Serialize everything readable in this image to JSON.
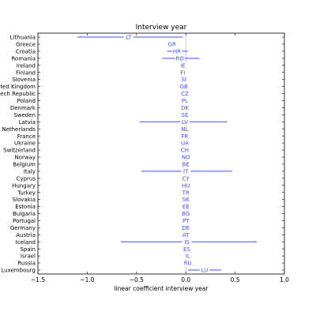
{
  "chart_data": {
    "type": "scatter",
    "title": "Interview year",
    "xlabel": "linear coefficient interview year",
    "ylabel": "",
    "xlim": [
      -1.5,
      1.0
    ],
    "xticks": [
      -1.5,
      -1.0,
      -0.5,
      0.0,
      0.5,
      1.0
    ],
    "xtick_labels": [
      "−1.5",
      "−1.0",
      "−0.5",
      "0.0",
      "0.5",
      "1.0"
    ],
    "grid": false,
    "reference_line_x": 0.0,
    "colors": {
      "interval": "#3f4fff",
      "reference": "#b8b8c8",
      "text": "#000000"
    },
    "points": [
      {
        "country": "Lithuania",
        "code": "LT",
        "estimate": -0.58,
        "low": -1.1,
        "high": -0.03
      },
      {
        "country": "Greece",
        "code": "GR",
        "estimate": -0.14,
        "low": -0.14,
        "high": -0.14
      },
      {
        "country": "Croatia",
        "code": "HR",
        "estimate": -0.09,
        "low": -0.19,
        "high": 0.02
      },
      {
        "country": "Romania",
        "code": "RO",
        "estimate": -0.06,
        "low": -0.24,
        "high": 0.14
      },
      {
        "country": "Ireland",
        "code": "IE",
        "estimate": -0.03,
        "low": -0.03,
        "high": -0.03
      },
      {
        "country": "Finland",
        "code": "FI",
        "estimate": -0.03,
        "low": -0.03,
        "high": -0.03
      },
      {
        "country": "Slovenia",
        "code": "SI",
        "estimate": -0.02,
        "low": -0.02,
        "high": -0.02
      },
      {
        "country": "United Kingdom",
        "code": "GB",
        "estimate": -0.02,
        "low": -0.02,
        "high": -0.02
      },
      {
        "country": "Czech Republic",
        "code": "CZ",
        "estimate": -0.01,
        "low": -0.01,
        "high": -0.01
      },
      {
        "country": "Poland",
        "code": "PL",
        "estimate": -0.01,
        "low": -0.01,
        "high": -0.01
      },
      {
        "country": "Denmark",
        "code": "DK",
        "estimate": -0.01,
        "low": -0.01,
        "high": -0.01
      },
      {
        "country": "Sweden",
        "code": "SE",
        "estimate": -0.01,
        "low": -0.01,
        "high": -0.01
      },
      {
        "country": "Latvia",
        "code": "LV",
        "estimate": -0.01,
        "low": -0.47,
        "high": 0.42
      },
      {
        "country": "Netherlands",
        "code": "NL",
        "estimate": -0.01,
        "low": -0.01,
        "high": -0.01
      },
      {
        "country": "France",
        "code": "FR",
        "estimate": -0.01,
        "low": -0.06,
        "high": 0.03
      },
      {
        "country": "Ukraine",
        "code": "UA",
        "estimate": -0.01,
        "low": -0.01,
        "high": -0.01
      },
      {
        "country": "Switzerland",
        "code": "CH",
        "estimate": -0.01,
        "low": -0.01,
        "high": -0.01
      },
      {
        "country": "Norway",
        "code": "NO",
        "estimate": 0.0,
        "low": 0.0,
        "high": 0.0
      },
      {
        "country": "Belgium",
        "code": "BE",
        "estimate": 0.0,
        "low": 0.0,
        "high": 0.0
      },
      {
        "country": "Italy",
        "code": "IT",
        "estimate": 0.0,
        "low": -0.45,
        "high": 0.47
      },
      {
        "country": "Cyprus",
        "code": "CY",
        "estimate": 0.0,
        "low": 0.0,
        "high": 0.0
      },
      {
        "country": "Hungary",
        "code": "HU",
        "estimate": 0.0,
        "low": 0.0,
        "high": 0.0
      },
      {
        "country": "Turkey",
        "code": "TR",
        "estimate": 0.0,
        "low": -0.02,
        "high": 0.03
      },
      {
        "country": "Slovakia",
        "code": "SK",
        "estimate": 0.0,
        "low": 0.0,
        "high": 0.0
      },
      {
        "country": "Estonia",
        "code": "EE",
        "estimate": 0.0,
        "low": 0.0,
        "high": 0.0
      },
      {
        "country": "Bulgaria",
        "code": "BG",
        "estimate": 0.0,
        "low": 0.0,
        "high": 0.0
      },
      {
        "country": "Portugal",
        "code": "PT",
        "estimate": 0.0,
        "low": 0.0,
        "high": 0.0
      },
      {
        "country": "Germany",
        "code": "DE",
        "estimate": 0.0,
        "low": 0.0,
        "high": 0.0
      },
      {
        "country": "Austria",
        "code": "AT",
        "estimate": 0.0,
        "low": -0.01,
        "high": 0.02
      },
      {
        "country": "Iceland",
        "code": "IS",
        "estimate": 0.01,
        "low": -0.66,
        "high": 0.72
      },
      {
        "country": "Spain",
        "code": "ES",
        "estimate": 0.01,
        "low": 0.01,
        "high": 0.01
      },
      {
        "country": "Israel",
        "code": "IL",
        "estimate": 0.02,
        "low": 0.02,
        "high": 0.02
      },
      {
        "country": "Russia",
        "code": "RU",
        "estimate": 0.02,
        "low": 0.02,
        "high": 0.02
      },
      {
        "country": "Luxembourg",
        "code": "LU",
        "estimate": 0.19,
        "low": 0.02,
        "high": 0.36
      }
    ]
  }
}
